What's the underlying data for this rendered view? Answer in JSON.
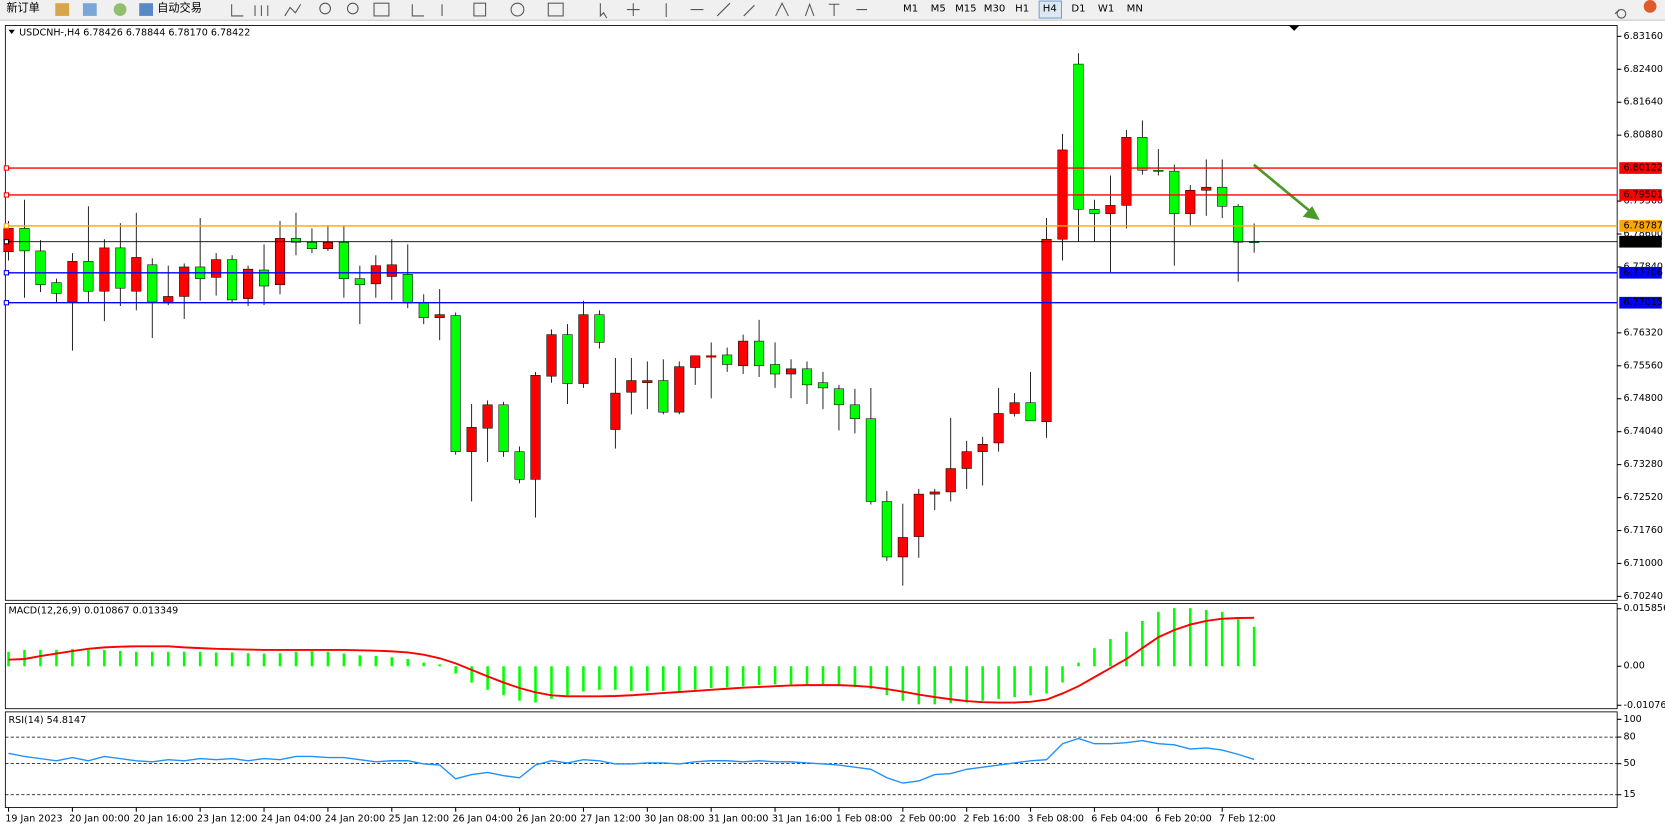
{
  "toolbar": {
    "new_order": "新订单",
    "auto_trading": "自动交易",
    "timeframes": [
      "M1",
      "M5",
      "M15",
      "M30",
      "H1",
      "H4",
      "D1",
      "W1",
      "MN"
    ]
  },
  "chart_data": [
    {
      "type": "candlestick",
      "title": "USDCNH-,H4  6.78426 6.78844 6.78170 6.78422",
      "up_color": "#ff0000",
      "down_color": "#00ff00",
      "categories": [
        "19 Jan 2023",
        null,
        null,
        null,
        "20 Jan 00:00",
        null,
        null,
        null,
        "20 Jan 16:00",
        null,
        null,
        null,
        "23 Jan 12:00",
        null,
        null,
        null,
        "24 Jan 04:00",
        null,
        null,
        null,
        "24 Jan 20:00",
        null,
        null,
        null,
        "25 Jan 12:00",
        null,
        null,
        null,
        "26 Jan 04:00",
        null,
        null,
        null,
        "26 Jan 20:00",
        null,
        null,
        null,
        "27 Jan 12:00",
        null,
        null,
        null,
        "30 Jan 08:00",
        null,
        null,
        null,
        "31 Jan 00:00",
        null,
        null,
        null,
        "31 Jan 16:00",
        null,
        null,
        null,
        "1 Feb 08:00",
        null,
        null,
        null,
        "2 Feb 00:00",
        null,
        null,
        null,
        "2 Feb 16:00",
        null,
        null,
        null,
        "3 Feb 08:00",
        null,
        null,
        null,
        "6 Feb 04:00",
        null,
        null,
        null,
        "6 Feb 20:00",
        null,
        null,
        null,
        "7 Feb 12:00",
        null,
        null
      ],
      "open": [
        6.7819,
        6.7873,
        6.7821,
        6.7748,
        6.7703,
        6.7797,
        6.7728,
        6.7828,
        6.7728,
        6.7789,
        6.7701,
        6.7716,
        6.7784,
        6.776,
        6.7801,
        6.7711,
        6.7777,
        6.7743,
        6.785,
        6.7841,
        6.7826,
        6.7841,
        6.7757,
        6.7745,
        6.7762,
        6.7767,
        6.7701,
        6.7667,
        6.7672,
        6.7358,
        6.7412,
        6.7466,
        6.7358,
        6.7294,
        6.7532,
        6.7628,
        6.7515,
        6.7674,
        6.7409,
        6.7495,
        6.7517,
        6.7522,
        6.7449,
        6.7552,
        6.7576,
        6.7581,
        6.7556,
        6.7613,
        6.7559,
        6.7537,
        6.7549,
        6.7517,
        6.7503,
        6.7466,
        6.7434,
        6.7243,
        6.7115,
        6.7162,
        6.726,
        6.7265,
        6.7319,
        6.7358,
        6.7378,
        6.7446,
        6.7471,
        6.7427,
        6.7848,
        6.8252,
        6.7917,
        6.7907,
        6.7926,
        6.8083,
        6.8007,
        6.8005,
        6.7907,
        6.7961,
        6.7968,
        6.7924,
        6.78426
      ],
      "high": [
        6.789,
        6.7939,
        6.7846,
        6.7757,
        6.7816,
        6.7924,
        6.7848,
        6.7885,
        6.7909,
        6.7804,
        6.7787,
        6.7792,
        6.7897,
        6.7816,
        6.7811,
        6.7787,
        6.7836,
        6.789,
        6.7909,
        6.7873,
        6.788,
        6.788,
        6.7787,
        6.7811,
        6.7848,
        6.7836,
        6.7721,
        6.7733,
        6.7679,
        6.7468,
        6.7476,
        6.7473,
        6.737,
        6.7542,
        6.764,
        6.7652,
        6.7706,
        6.7684,
        6.7574,
        6.7574,
        6.7566,
        6.7571,
        6.7566,
        6.7579,
        6.761,
        6.7598,
        6.7628,
        6.7662,
        6.761,
        6.7571,
        6.7566,
        6.7542,
        6.7512,
        6.7503,
        6.7505,
        6.7267,
        6.7238,
        6.7272,
        6.7272,
        6.7436,
        6.7383,
        6.7392,
        6.7505,
        6.7493,
        6.7542,
        6.7897,
        6.8091,
        6.8277,
        6.7939,
        6.7995,
        6.81,
        6.8122,
        6.8056,
        6.802,
        6.7973,
        6.8032,
        6.8032,
        6.7929,
        6.78844
      ],
      "low": [
        6.7799,
        6.7713,
        6.7726,
        6.7701,
        6.7591,
        6.7703,
        6.7659,
        6.7694,
        6.7684,
        6.762,
        6.7696,
        6.7664,
        6.7706,
        6.7718,
        6.7701,
        6.7694,
        6.7696,
        6.7721,
        6.7811,
        6.7816,
        6.7821,
        6.7713,
        6.7652,
        6.7713,
        6.7708,
        6.7689,
        6.7652,
        6.7615,
        6.7351,
        6.7243,
        6.7334,
        6.7346,
        6.7285,
        6.7206,
        6.7517,
        6.7468,
        6.7505,
        6.7596,
        6.7365,
        6.7444,
        6.7456,
        6.7444,
        6.7444,
        6.7512,
        6.7481,
        6.7542,
        6.7537,
        6.753,
        6.7505,
        6.7481,
        6.7468,
        6.7456,
        6.7407,
        6.74,
        6.7236,
        6.7106,
        6.7049,
        6.7113,
        6.7223,
        6.7243,
        6.7272,
        6.728,
        6.7358,
        6.7439,
        6.7429,
        6.739,
        6.7799,
        6.7843,
        6.7843,
        6.7772,
        6.7873,
        6.7997,
        6.7995,
        6.7787,
        6.788,
        6.7902,
        6.7897,
        6.775,
        6.7817
      ],
      "close": [
        6.7873,
        6.7821,
        6.7743,
        6.7723,
        6.7797,
        6.7728,
        6.7828,
        6.7735,
        6.7806,
        6.7703,
        6.7716,
        6.7784,
        6.7757,
        6.7801,
        6.7708,
        6.7779,
        6.774,
        6.785,
        6.7841,
        6.7826,
        6.7841,
        6.7757,
        6.7743,
        6.7787,
        6.7789,
        6.7701,
        6.7667,
        6.7674,
        6.7358,
        6.7414,
        6.7466,
        6.7358,
        6.7294,
        6.7534,
        6.7628,
        6.7515,
        6.7674,
        6.761,
        6.7493,
        6.7522,
        6.7522,
        6.7449,
        6.7554,
        6.7579,
        6.7579,
        6.7559,
        6.7613,
        6.7556,
        6.7537,
        6.7549,
        6.7512,
        6.7505,
        6.7466,
        6.7434,
        6.7243,
        6.7115,
        6.716,
        6.726,
        6.7265,
        6.7319,
        6.7358,
        6.7375,
        6.7446,
        6.7471,
        6.7429,
        6.7848,
        6.8054,
        6.7917,
        6.7907,
        6.7926,
        6.8083,
        6.8007,
        6.8005,
        6.7907,
        6.7961,
        6.7968,
        6.7924,
        6.7841,
        6.78422
      ],
      "ylim": [
        6.7015,
        6.8341
      ],
      "yticks": [
        {
          "value": 6.8316,
          "label": "6.83160"
        },
        {
          "value": 6.824,
          "label": "6.82400"
        },
        {
          "value": 6.8164,
          "label": "6.81640"
        },
        {
          "value": 6.8088,
          "label": "6.80880"
        },
        {
          "value": 6.7936,
          "label": "6.79360"
        },
        {
          "value": 6.786,
          "label": "6.78600"
        },
        {
          "value": 6.7784,
          "label": "6.77840"
        },
        {
          "value": 6.7632,
          "label": "6.76320"
        },
        {
          "value": 6.7556,
          "label": "6.75560"
        },
        {
          "value": 6.748,
          "label": "6.74800"
        },
        {
          "value": 6.7404,
          "label": "6.74040"
        },
        {
          "value": 6.7328,
          "label": "6.73280"
        },
        {
          "value": 6.7252,
          "label": "6.72520"
        },
        {
          "value": 6.7176,
          "label": "6.71760"
        },
        {
          "value": 6.71,
          "label": "6.71000"
        },
        {
          "value": 6.7024,
          "label": "6.70240"
        }
      ],
      "hlines": [
        {
          "value": 6.80122,
          "color": "#ff0000"
        },
        {
          "value": 6.79501,
          "color": "#ff0000"
        },
        {
          "value": 6.78787,
          "color": "#ffa500"
        },
        {
          "value": 6.78422,
          "color": "#000000"
        },
        {
          "value": 6.77706,
          "color": "#0000ff"
        },
        {
          "value": 6.77015,
          "color": "#0000ff"
        }
      ]
    },
    {
      "type": "macd",
      "title": "MACD(12,26,9) 0.010867 0.013349",
      "color": "#00ff00",
      "signal_color": "#ff0000",
      "values": [
        0.004,
        0.0045,
        0.0045,
        0.0045,
        0.0048,
        0.0045,
        0.0045,
        0.0042,
        0.004,
        0.004,
        0.004,
        0.004,
        0.004,
        0.0038,
        0.0038,
        0.0036,
        0.0035,
        0.0036,
        0.004,
        0.0042,
        0.004,
        0.0035,
        0.003,
        0.0028,
        0.0025,
        0.002,
        0.001,
        0.0005,
        -0.002,
        -0.0045,
        -0.0065,
        -0.008,
        -0.0095,
        -0.01,
        -0.009,
        -0.008,
        -0.007,
        -0.0065,
        -0.0065,
        -0.0068,
        -0.0068,
        -0.0068,
        -0.0068,
        -0.0065,
        -0.006,
        -0.0058,
        -0.0055,
        -0.0052,
        -0.005,
        -0.005,
        -0.005,
        -0.0052,
        -0.0055,
        -0.0058,
        -0.0062,
        -0.008,
        -0.0095,
        -0.0105,
        -0.0105,
        -0.0102,
        -0.01,
        -0.0095,
        -0.009,
        -0.0085,
        -0.008,
        -0.0075,
        -0.0045,
        0.001,
        0.005,
        0.0075,
        0.0095,
        0.0125,
        0.015,
        0.016,
        0.016,
        0.0155,
        0.015,
        0.013,
        0.010867
      ],
      "signal": [
        0.0018,
        0.002,
        0.0028,
        0.0035,
        0.0042,
        0.0048,
        0.0052,
        0.0054,
        0.0055,
        0.0055,
        0.0055,
        0.0052,
        0.005,
        0.0048,
        0.0047,
        0.0046,
        0.0045,
        0.0045,
        0.0045,
        0.0045,
        0.0045,
        0.0045,
        0.0044,
        0.0043,
        0.0041,
        0.0038,
        0.0032,
        0.0022,
        0.0008,
        -0.001,
        -0.0028,
        -0.0045,
        -0.006,
        -0.0072,
        -0.008,
        -0.0083,
        -0.0083,
        -0.0083,
        -0.0082,
        -0.008,
        -0.0077,
        -0.0074,
        -0.0071,
        -0.0068,
        -0.0065,
        -0.0062,
        -0.0059,
        -0.0057,
        -0.0055,
        -0.0053,
        -0.0052,
        -0.0052,
        -0.0052,
        -0.0054,
        -0.0057,
        -0.0063,
        -0.007,
        -0.0078,
        -0.0085,
        -0.0091,
        -0.0096,
        -0.0099,
        -0.01,
        -0.01,
        -0.0098,
        -0.0092,
        -0.0075,
        -0.0055,
        -0.003,
        -0.0005,
        0.002,
        0.005,
        0.008,
        0.01,
        0.0115,
        0.0125,
        0.0131,
        0.0133,
        0.013349
      ],
      "ylim": [
        -0.0117,
        0.0173
      ],
      "yticks": [
        0.015856,
        {
          "value": 0,
          "label": "0.00"
        },
        -0.01076
      ]
    },
    {
      "type": "line",
      "title": "RSI(14) 54.8147",
      "color": "#1e90ff",
      "values": [
        61.7,
        58.1,
        55.7,
        53.3,
        56.9,
        53.3,
        58.1,
        55.7,
        53.3,
        52.1,
        54.5,
        53.3,
        55.7,
        54.5,
        55.7,
        53.3,
        55.7,
        54.5,
        58.1,
        58.1,
        56.9,
        56.9,
        54.5,
        52.1,
        53.3,
        53.3,
        49.7,
        48.5,
        32.9,
        37.7,
        40.1,
        36.5,
        34.1,
        48.5,
        53.3,
        50.9,
        54.5,
        53.3,
        49.7,
        49.7,
        50.9,
        50.9,
        49.7,
        52.1,
        53.3,
        53.3,
        52.1,
        53.3,
        52.1,
        52.1,
        50.9,
        49.7,
        48.5,
        46.1,
        43.7,
        34.1,
        28.1,
        30.5,
        37.7,
        38.9,
        43.7,
        46.1,
        48.5,
        50.9,
        53.3,
        54.5,
        72.5,
        78.4,
        72.5,
        72.5,
        73.7,
        76.0,
        72.5,
        71.3,
        66.5,
        67.7,
        65.3,
        60.5,
        54.8147
      ],
      "ylim": [
        0.6,
        108.4
      ],
      "yticks": [
        100,
        80,
        50,
        15
      ],
      "levels": [
        80,
        50,
        15
      ]
    }
  ]
}
